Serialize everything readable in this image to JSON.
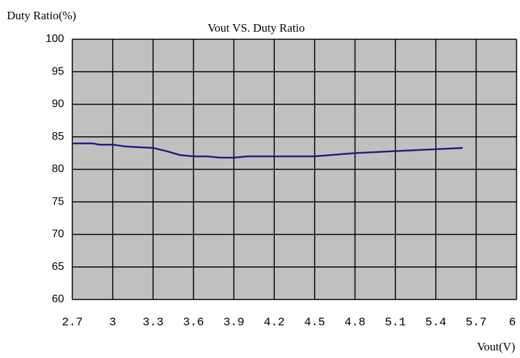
{
  "chart_data": {
    "type": "line",
    "title": "Vout VS. Duty Ratio",
    "y_label": "Duty Ratio(%)",
    "x_label": "Vout(V)",
    "x": [
      2.7,
      2.85,
      2.9,
      3.0,
      3.1,
      3.3,
      3.4,
      3.5,
      3.6,
      3.7,
      3.8,
      3.9,
      4.0,
      4.2,
      4.5,
      4.8,
      5.1,
      5.4,
      5.6
    ],
    "series": [
      {
        "name": "Duty Ratio",
        "color": "#1c1c82",
        "values": [
          84,
          84,
          83.8,
          83.8,
          83.5,
          83.3,
          82.8,
          82.2,
          82,
          82,
          81.8,
          81.8,
          82,
          82,
          82,
          82.5,
          82.8,
          83.1,
          83.3
        ]
      }
    ],
    "xlim": [
      2.7,
      6
    ],
    "xticks": [
      2.7,
      3,
      3.3,
      3.6,
      3.9,
      4.2,
      4.5,
      4.8,
      5.1,
      5.4,
      5.7,
      6
    ],
    "ylim": [
      60,
      100
    ],
    "yticks": [
      60,
      65,
      70,
      75,
      80,
      85,
      90,
      95,
      100
    ],
    "grid": true,
    "background": "#c0c0c0"
  }
}
